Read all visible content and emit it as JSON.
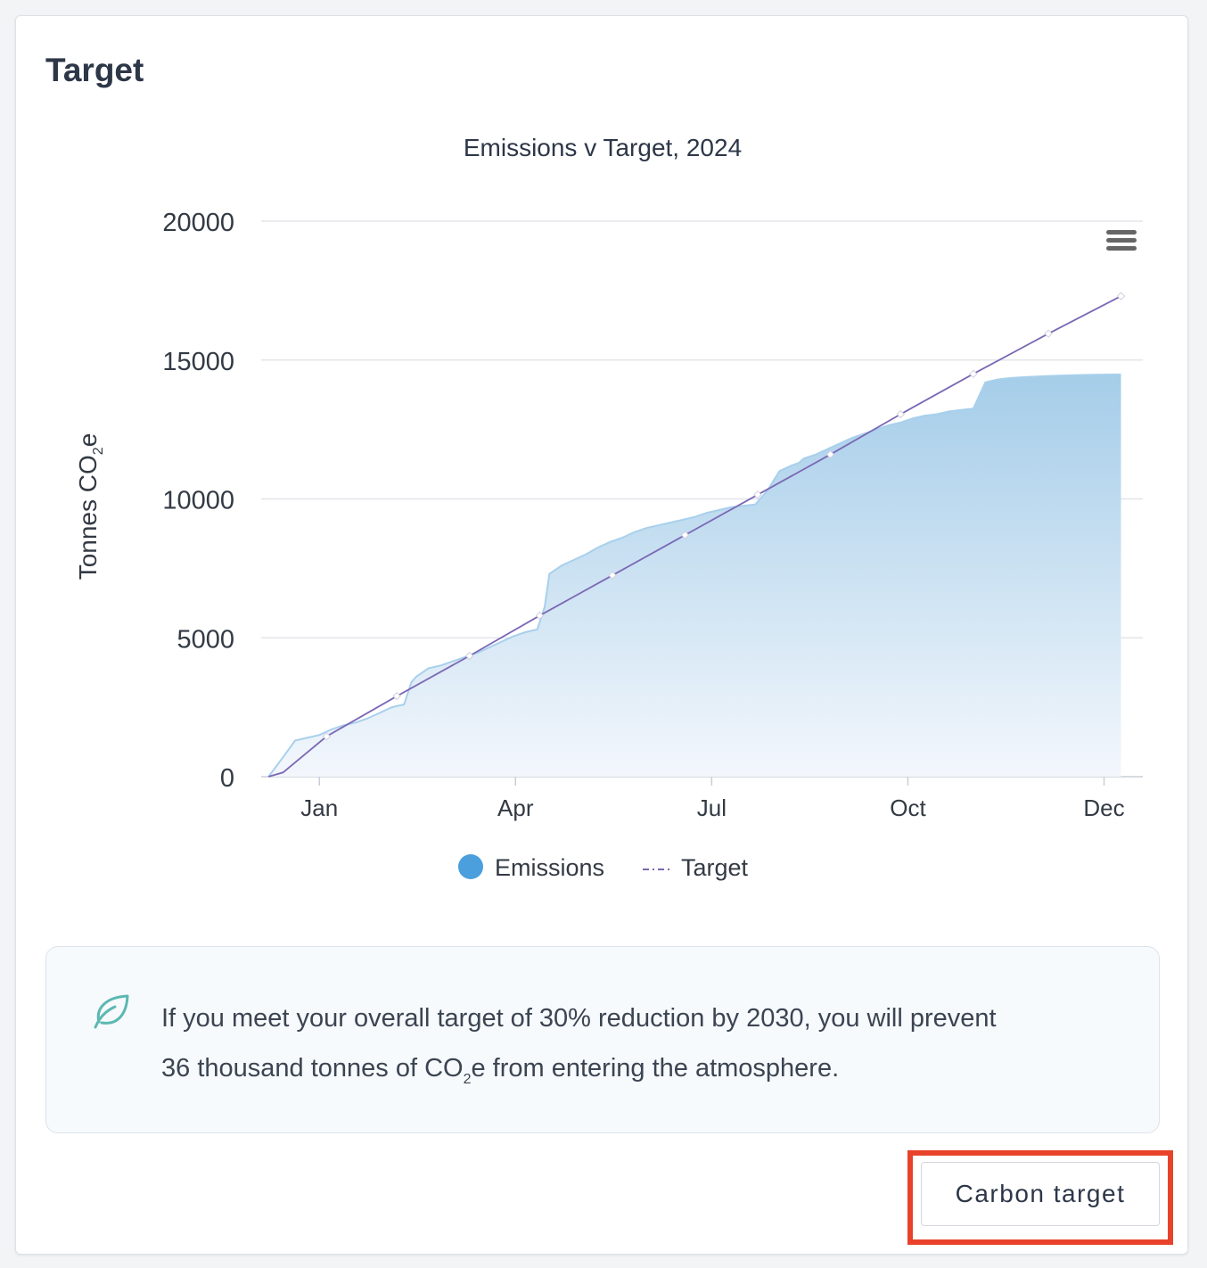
{
  "card": {
    "title": "Target"
  },
  "chart_data": {
    "type": "area",
    "title": "Emissions v Target, 2024",
    "ylabel": "Tonnes CO",
    "ylabel_sub": "2",
    "ylabel_suffix": "e",
    "xlabel": "",
    "ylim": [
      0,
      20000
    ],
    "xlim_days": [
      -24,
      340
    ],
    "y_ticks": [
      0,
      5000,
      10000,
      15000,
      20000
    ],
    "x_ticks": [
      {
        "label": "Jan",
        "day": 0
      },
      {
        "label": "Apr",
        "day": 81
      },
      {
        "label": "Jul",
        "day": 162
      },
      {
        "label": "Oct",
        "day": 243
      },
      {
        "label": "Dec",
        "day": 324
      }
    ],
    "grid": true,
    "legend_position": "bottom",
    "series": [
      {
        "name": "Emissions",
        "type": "area",
        "color": "#4a9fdc",
        "x_days": [
          -21,
          -15,
          -10,
          -5,
          0,
          5,
          10,
          15,
          20,
          25,
          30,
          35,
          38,
          40,
          45,
          50,
          55,
          60,
          65,
          70,
          75,
          80,
          85,
          90,
          93,
          95,
          100,
          105,
          110,
          115,
          120,
          125,
          130,
          135,
          140,
          145,
          150,
          155,
          160,
          165,
          170,
          175,
          180,
          185,
          190,
          195,
          198,
          200,
          205,
          210,
          215,
          220,
          225,
          230,
          235,
          240,
          245,
          250,
          255,
          260,
          265,
          270,
          275,
          280,
          283,
          285,
          290,
          300,
          310,
          320,
          331
        ],
        "values": [
          0,
          700,
          1300,
          1400,
          1500,
          1700,
          1850,
          1950,
          2100,
          2300,
          2500,
          2600,
          3400,
          3600,
          3900,
          4000,
          4150,
          4300,
          4450,
          4650,
          4850,
          5050,
          5200,
          5300,
          6100,
          7300,
          7600,
          7800,
          8000,
          8250,
          8450,
          8600,
          8800,
          8950,
          9050,
          9150,
          9250,
          9350,
          9500,
          9600,
          9700,
          9750,
          9800,
          10300,
          11000,
          11200,
          11300,
          11450,
          11600,
          11800,
          12000,
          12200,
          12350,
          12500,
          12650,
          12750,
          12900,
          13000,
          13050,
          13150,
          13200,
          13250,
          14200,
          14300,
          14330,
          14350,
          14380,
          14420,
          14450,
          14470,
          14480
        ]
      },
      {
        "name": "Target",
        "type": "line",
        "dash": "dash-dot",
        "color": "#7b68b5",
        "x_days": [
          -21,
          -15,
          3,
          32,
          62,
          91,
          121,
          151,
          181,
          211,
          240,
          270,
          301,
          331
        ],
        "values": [
          0,
          150,
          1450,
          2900,
          4350,
          5800,
          7250,
          8700,
          10150,
          11600,
          13050,
          14500,
          15950,
          17300
        ]
      }
    ]
  },
  "chart_menu": {
    "icon": "hamburger-menu-icon"
  },
  "info": {
    "icon": "leaf-icon",
    "line1": "If you meet your overall target of 30% reduction by 2030, you will prevent",
    "line2_prefix": "36 thousand tonnes of CO",
    "line2_sub": "2",
    "line2_suffix": "e from entering the atmosphere."
  },
  "button": {
    "label": "Carbon target"
  },
  "colors": {
    "accent_highlight": "#e8432a",
    "leaf": "#5cb8b2",
    "emissions_fill": "#a8cfea",
    "target_line": "#7b68b5"
  }
}
